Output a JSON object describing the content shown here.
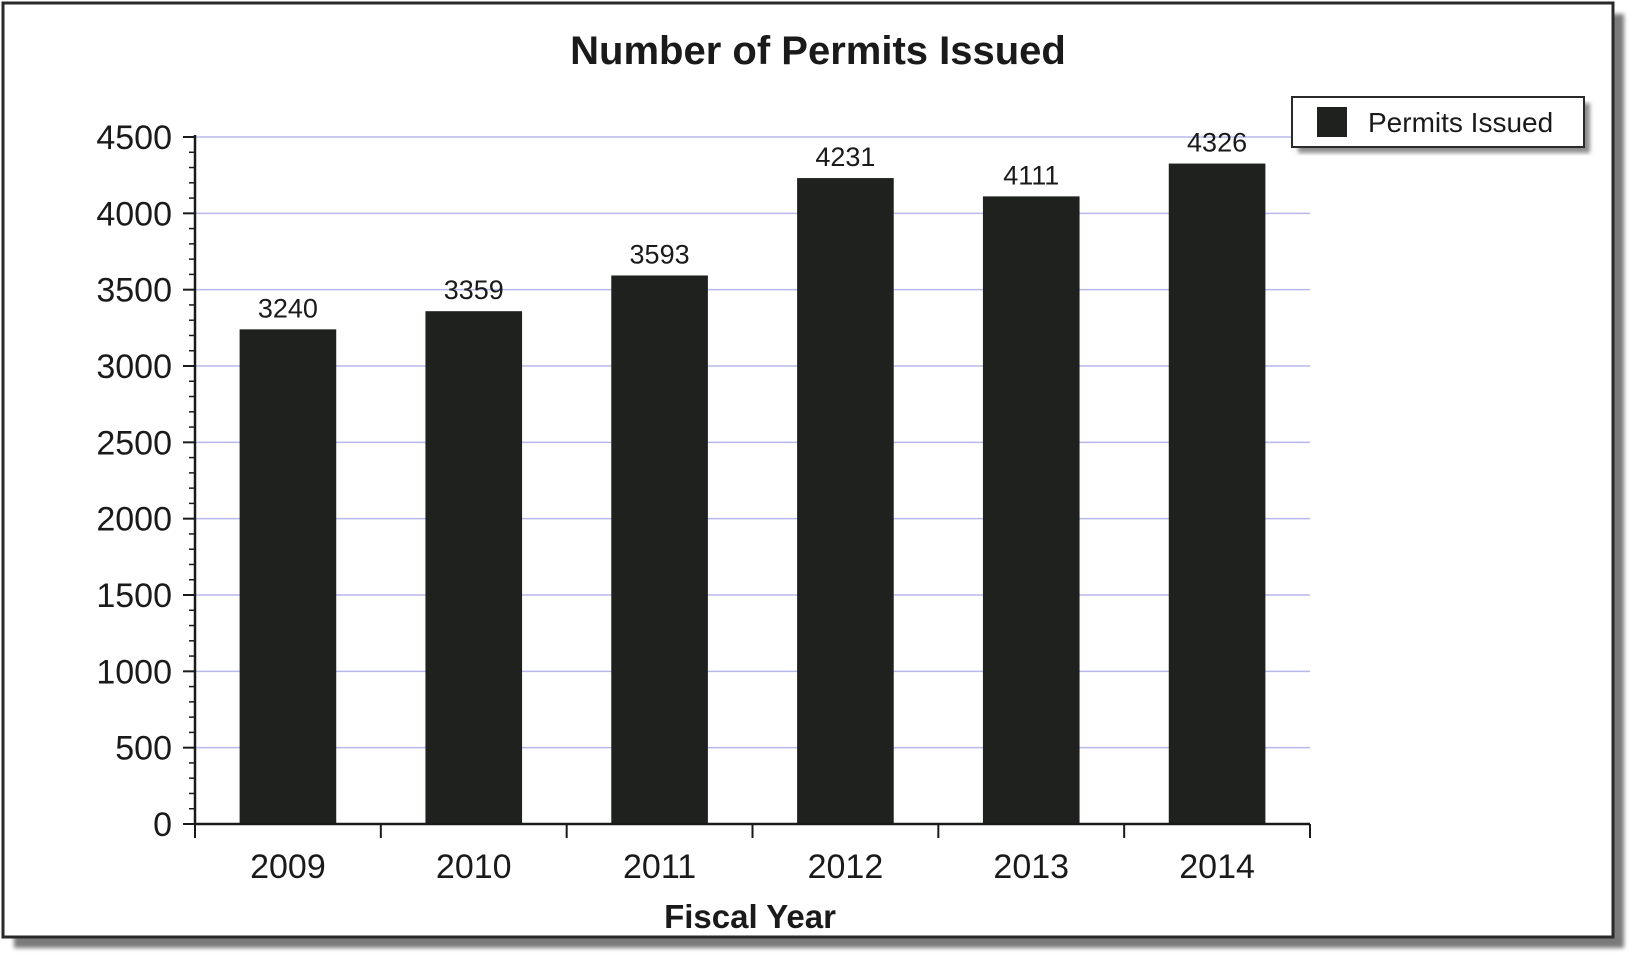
{
  "chart_data": {
    "type": "bar",
    "title": "Number of Permits Issued",
    "xlabel": "Fiscal Year",
    "ylabel": "",
    "categories": [
      "2009",
      "2010",
      "2011",
      "2012",
      "2013",
      "2014"
    ],
    "series": [
      {
        "name": "Permits Issued",
        "values": [
          3240,
          3359,
          3593,
          4231,
          4111,
          4326
        ]
      }
    ],
    "ylim": [
      0,
      4500
    ],
    "yticks": [
      0,
      500,
      1000,
      1500,
      2000,
      2500,
      3000,
      3500,
      4000,
      4500
    ],
    "grid": true,
    "legend": "top-right",
    "data_labels": true,
    "colors": {
      "bar": "#1e211e",
      "gridline": "#b8b8ec",
      "background": "#ffffff",
      "frame_shadow": "#7a7a7a"
    }
  }
}
